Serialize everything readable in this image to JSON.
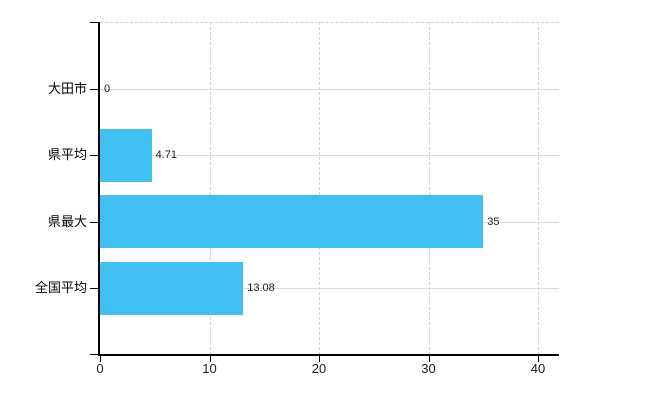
{
  "chart_data": {
    "type": "bar",
    "orientation": "horizontal",
    "title": "",
    "categories": [
      "大田市",
      "県平均",
      "県最大",
      "全国平均"
    ],
    "values": [
      0,
      4.71,
      35,
      13.08
    ],
    "value_labels": [
      "0",
      "4.71",
      "35",
      "13.08"
    ],
    "x_ticks": [
      0,
      10,
      20,
      30,
      40
    ],
    "x_tick_labels": [
      "0",
      "10",
      "20",
      "30",
      "40"
    ],
    "xlim": [
      0,
      41.9
    ],
    "grid": {
      "horizontal": "solid",
      "vertical": "dashed",
      "top_border": "dashed"
    },
    "legend": "none",
    "colors": {
      "bar": "#42BFF1",
      "grid_solid": "#d7dcd7",
      "grid_dashed": "#d2d2d2",
      "axis": "#000000",
      "text": "#000000",
      "background": "#ffffff"
    }
  }
}
